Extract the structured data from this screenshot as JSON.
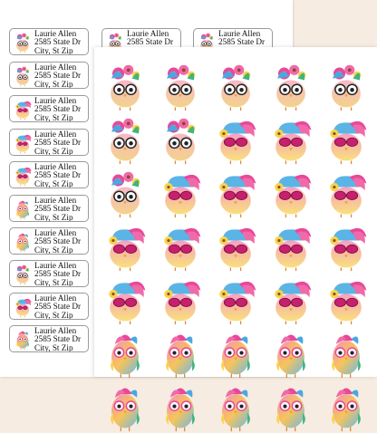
{
  "address_label": {
    "name": "Laurie Allen",
    "street": "2585 State Dr",
    "city": "City, St Zip"
  },
  "sticker_grid": {
    "rows": 7,
    "columns": 5
  },
  "icons": [
    "bird-with-flower-crown-icon",
    "bird-with-sunglasses-icon",
    "parrot-with-glasses-icon"
  ],
  "colors": {
    "background": "#f6ece1",
    "pink": "#e8489a",
    "yellow": "#f7d44a",
    "blue": "#4aa8e0"
  }
}
